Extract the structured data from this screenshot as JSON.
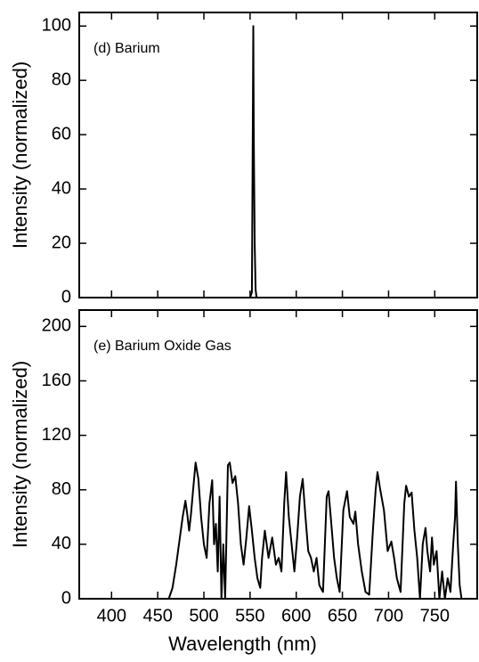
{
  "chart_data": [
    {
      "type": "line",
      "annotation": "(d)  Barium",
      "ylabel": "Intensity (normalized)",
      "color": "#000000",
      "x": [
        365,
        550,
        552,
        553,
        553.5,
        554,
        555,
        556,
        557,
        796
      ],
      "values": [
        0,
        0,
        2,
        65,
        100,
        60,
        20,
        3,
        0,
        0
      ],
      "xlim": [
        365,
        796
      ],
      "xticks": [
        400,
        450,
        500,
        550,
        600,
        650,
        700,
        750
      ],
      "show_xtick_labels": false,
      "ylim": [
        0,
        105
      ],
      "yticks": [
        0,
        20,
        40,
        60,
        80,
        100
      ]
    },
    {
      "type": "line",
      "annotation": "(e)  Barium Oxide Gas",
      "ylabel": "Intensity (normalized)",
      "xlabel": "Wavelength (nm)",
      "color": "#000000",
      "x": [
        365,
        462,
        466,
        470,
        474,
        477,
        480,
        482,
        484,
        486,
        489,
        491,
        494,
        497,
        500,
        503,
        506,
        509,
        511,
        513,
        515,
        517,
        519,
        521,
        523,
        526,
        528,
        531,
        534,
        537,
        540,
        543,
        546,
        549,
        552,
        555,
        558,
        561,
        563,
        566,
        570,
        574,
        578,
        581,
        584,
        587,
        589,
        592,
        595,
        598,
        601,
        604,
        607,
        610,
        613,
        616,
        619,
        622,
        625,
        629,
        633,
        635,
        638,
        641,
        644,
        647,
        651,
        655,
        658,
        662,
        664,
        667,
        671,
        675,
        679,
        683,
        686,
        688,
        691,
        695,
        699,
        703,
        706,
        709,
        713,
        717,
        719,
        722,
        725,
        728,
        731,
        734,
        737,
        740,
        742,
        745,
        747,
        749,
        752,
        755,
        758,
        761,
        764,
        767,
        770,
        772,
        773,
        775,
        777,
        779,
        796
      ],
      "values": [
        0,
        0,
        8,
        25,
        45,
        60,
        72,
        62,
        50,
        62,
        85,
        100,
        88,
        60,
        40,
        30,
        70,
        87,
        40,
        55,
        20,
        75,
        0,
        40,
        0,
        98,
        100,
        85,
        90,
        70,
        40,
        25,
        45,
        68,
        50,
        30,
        15,
        8,
        30,
        50,
        30,
        45,
        25,
        30,
        20,
        70,
        93,
        60,
        40,
        20,
        45,
        75,
        88,
        60,
        35,
        30,
        20,
        30,
        10,
        5,
        75,
        79,
        55,
        30,
        15,
        5,
        65,
        79,
        60,
        55,
        64,
        40,
        20,
        5,
        3,
        50,
        80,
        93,
        80,
        65,
        35,
        42,
        30,
        15,
        5,
        70,
        83,
        75,
        78,
        50,
        30,
        0,
        40,
        52,
        35,
        20,
        45,
        25,
        35,
        0,
        20,
        0,
        15,
        5,
        40,
        60,
        86,
        40,
        10,
        0,
        0
      ],
      "xlim": [
        365,
        796
      ],
      "xticks": [
        400,
        450,
        500,
        550,
        600,
        650,
        700,
        750
      ],
      "show_xtick_labels": true,
      "ylim": [
        0,
        212
      ],
      "yticks": [
        0,
        40,
        80,
        120,
        160,
        200
      ]
    }
  ]
}
